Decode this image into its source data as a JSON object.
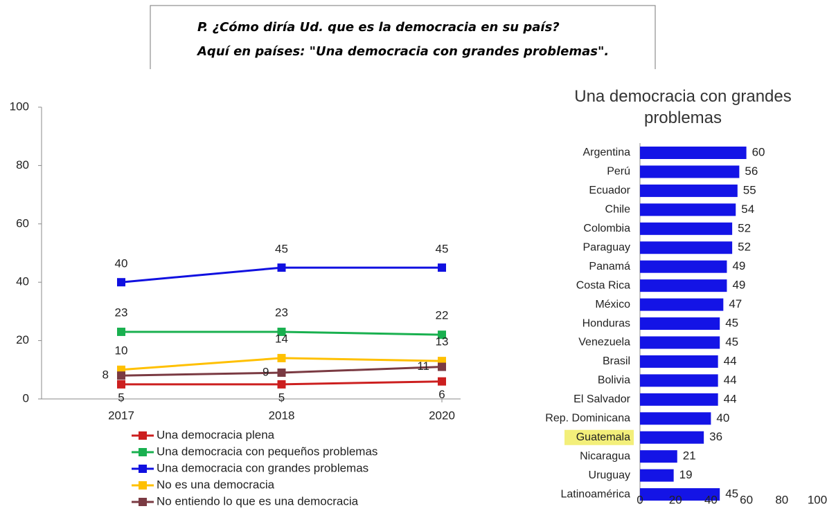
{
  "header": {
    "lines": [
      "P. ¿Cómo diría Ud. que es la democracia en su país?",
      "Aquí en países: \"Una democracia con grandes problemas\"."
    ]
  },
  "chart_data": [
    {
      "type": "line",
      "categories": [
        "2017",
        "2018",
        "2020"
      ],
      "ylim": [
        0,
        100
      ],
      "yticks": [
        0,
        20,
        40,
        60,
        80,
        100
      ],
      "grid": false,
      "series": [
        {
          "name": "Una democracia plena",
          "color": "#cc1f1f",
          "values": [
            5,
            5,
            6
          ]
        },
        {
          "name": "Una democracia con pequeños problemas",
          "color": "#19b04f",
          "values": [
            23,
            23,
            22
          ]
        },
        {
          "name": "Una democracia con grandes problemas",
          "color": "#1010e0",
          "values": [
            40,
            45,
            45
          ]
        },
        {
          "name": "No es una democracia",
          "color": "#ffc000",
          "values": [
            10,
            14,
            13
          ]
        },
        {
          "name": "No entiendo lo que es una democracia",
          "color": "#7a3a42",
          "values": [
            8,
            9,
            11
          ]
        }
      ]
    },
    {
      "type": "hbar",
      "title": "Una democracia con grandes problemas",
      "categories": [
        "Argentina",
        "Perú",
        "Ecuador",
        "Chile",
        "Colombia",
        "Paraguay",
        "Panamá",
        "Costa Rica",
        "México",
        "Honduras",
        "Venezuela",
        "Brasil",
        "Bolivia",
        "El Salvador",
        "Rep. Dominicana",
        "Guatemala",
        "Nicaragua",
        "Uruguay",
        "Latinoamérica"
      ],
      "values": [
        60,
        56,
        55,
        54,
        52,
        52,
        49,
        49,
        47,
        45,
        45,
        44,
        44,
        44,
        40,
        36,
        21,
        19,
        45
      ],
      "color": "#1414e6",
      "highlight": "Guatemala",
      "highlight_color": "#f3ef7a",
      "xlim": [
        0,
        100
      ],
      "xticks": [
        0,
        20,
        40,
        60,
        80,
        100
      ]
    }
  ]
}
